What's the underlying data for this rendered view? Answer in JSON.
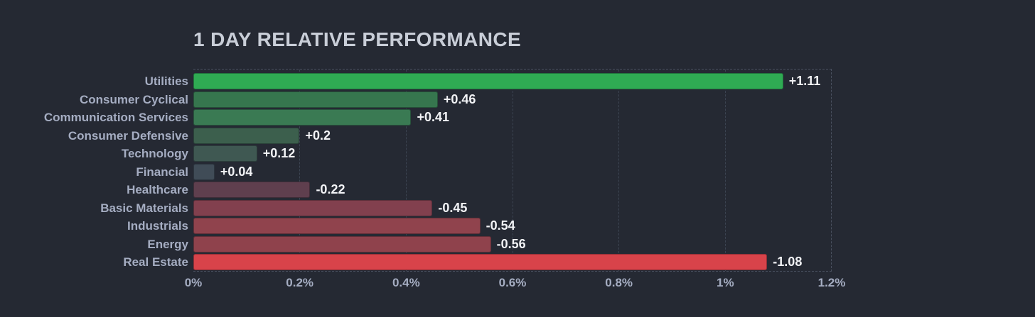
{
  "page": {
    "background_color": "#252933",
    "label_color": "#a5adc2",
    "value_label_color": "#f2f3f6",
    "title_color": "#c9ced8",
    "gridline_color": "#3c4452",
    "border_color": "#4a5160"
  },
  "chart_data": {
    "type": "bar",
    "orientation": "horizontal",
    "title": "1 DAY RELATIVE PERFORMANCE",
    "xlabel": "",
    "ylabel": "",
    "xlim": [
      0,
      1.2
    ],
    "grid": "dashed-vertical",
    "bars_start_at_zero": true,
    "bar_length_represents": "absolute value of percent change",
    "categories": [
      "Utilities",
      "Consumer Cyclical",
      "Communication Services",
      "Consumer Defensive",
      "Technology",
      "Financial",
      "Healthcare",
      "Basic Materials",
      "Industrials",
      "Energy",
      "Real Estate"
    ],
    "values": [
      1.11,
      0.46,
      0.41,
      0.2,
      0.12,
      0.04,
      -0.22,
      -0.45,
      -0.54,
      -0.56,
      -1.08
    ],
    "value_labels": [
      "+1.11",
      "+0.46",
      "+0.41",
      "+0.2",
      "+0.12",
      "+0.04",
      "-0.22",
      "-0.45",
      "-0.54",
      "-0.56",
      "-1.08"
    ],
    "bar_colors": [
      "#2fab53",
      "#36764e",
      "#3a7a53",
      "#3c5f4d",
      "#3f5852",
      "#404c57",
      "#5f3f4e",
      "#82404e",
      "#90434d",
      "#8f424c",
      "#d8434a"
    ],
    "x_ticks": [
      {
        "label": "0%",
        "value": 0
      },
      {
        "label": "0.2%",
        "value": 0.2
      },
      {
        "label": "0.4%",
        "value": 0.4
      },
      {
        "label": "0.6%",
        "value": 0.6
      },
      {
        "label": "0.8%",
        "value": 0.8
      },
      {
        "label": "1%",
        "value": 1.0
      },
      {
        "label": "1.2%",
        "value": 1.2
      }
    ],
    "legend": "none"
  }
}
